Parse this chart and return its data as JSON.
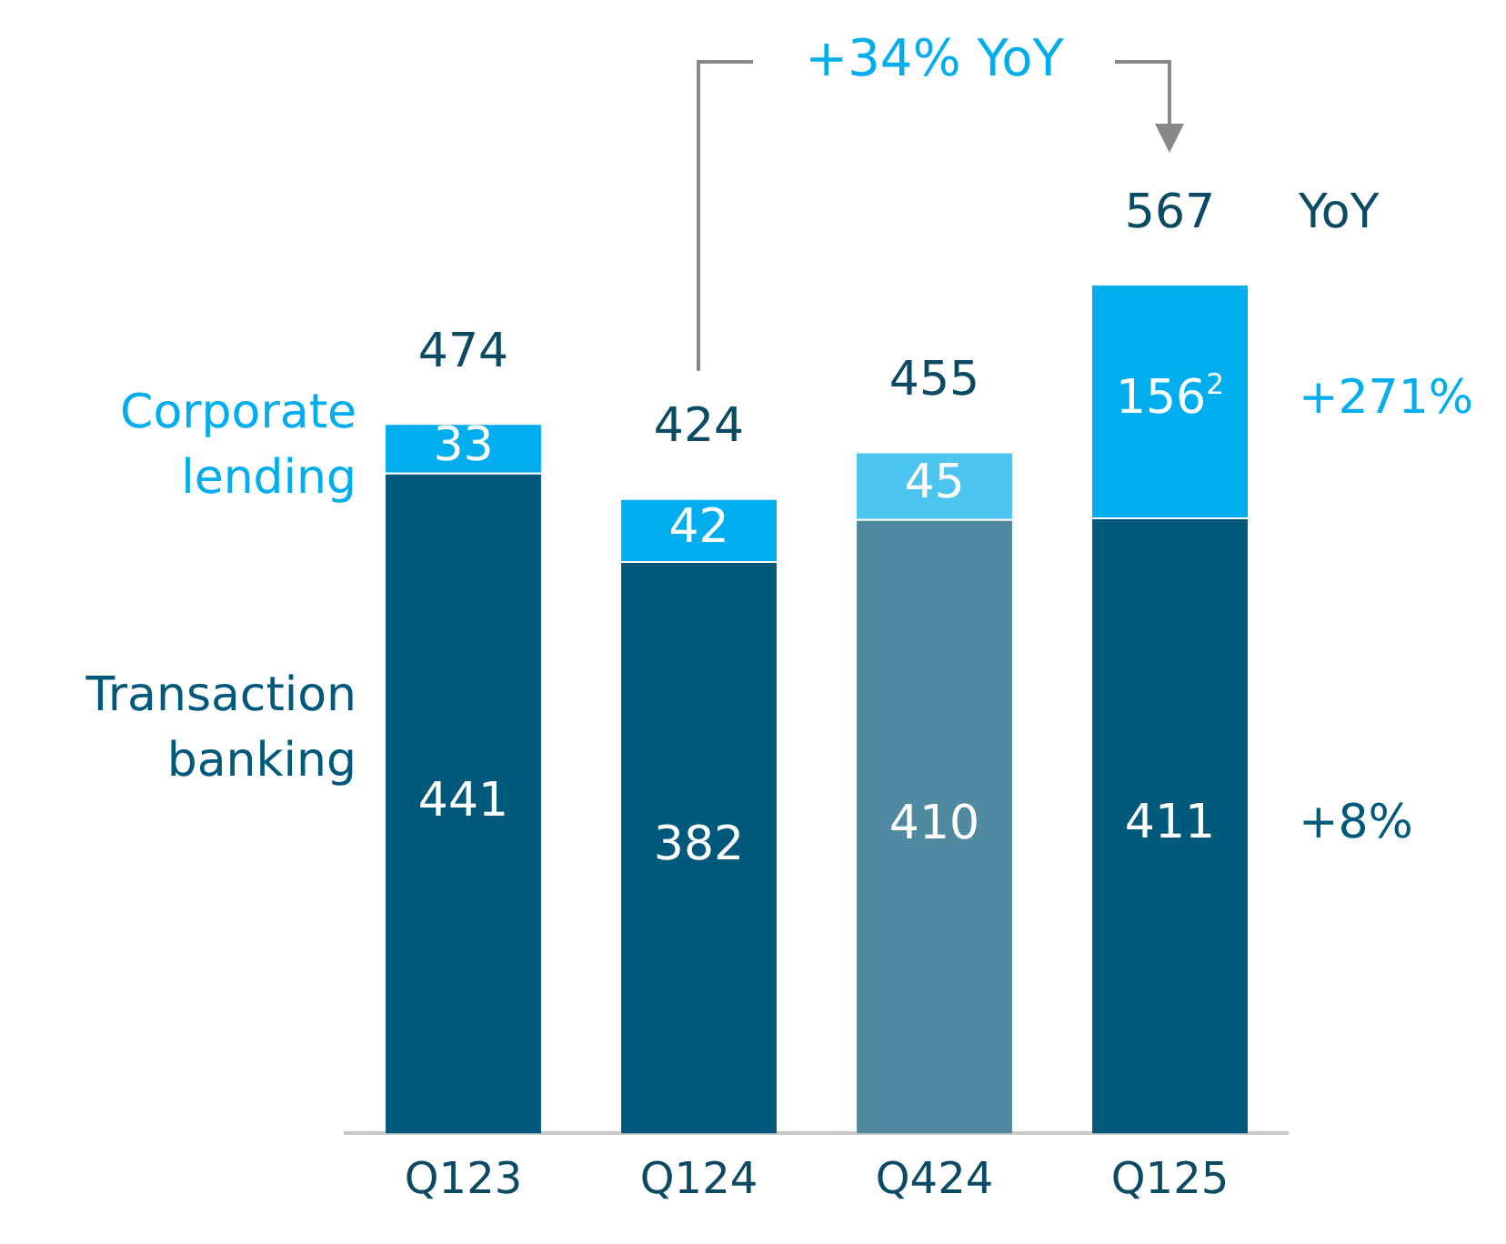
{
  "chart_data": {
    "type": "bar",
    "stacked": true,
    "categories": [
      "Q123",
      "Q124",
      "Q424",
      "Q125"
    ],
    "series": [
      {
        "name": "Transaction banking",
        "color": "#00587a",
        "colors": [
          "#00587a",
          "#00587a",
          "#4f8aa0",
          "#00587a"
        ],
        "values": [
          441,
          382,
          410,
          411
        ]
      },
      {
        "name": "Corporate lending",
        "color": "#00adef",
        "colors": [
          "#00adef",
          "#00adef",
          "#4dc3f0",
          "#00adef"
        ],
        "values": [
          33,
          42,
          45,
          156
        ],
        "value_labels": [
          "33",
          "42",
          "45",
          "156$^{2}$"
        ]
      }
    ],
    "data_labels": true,
    "totals": [
      "474",
      "424",
      "455",
      "567"
    ],
    "annotations": [
      "+34% YoY",
      "YoY",
      "+271%",
      "+8%"
    ],
    "legend": false,
    "grid": false
  }
}
